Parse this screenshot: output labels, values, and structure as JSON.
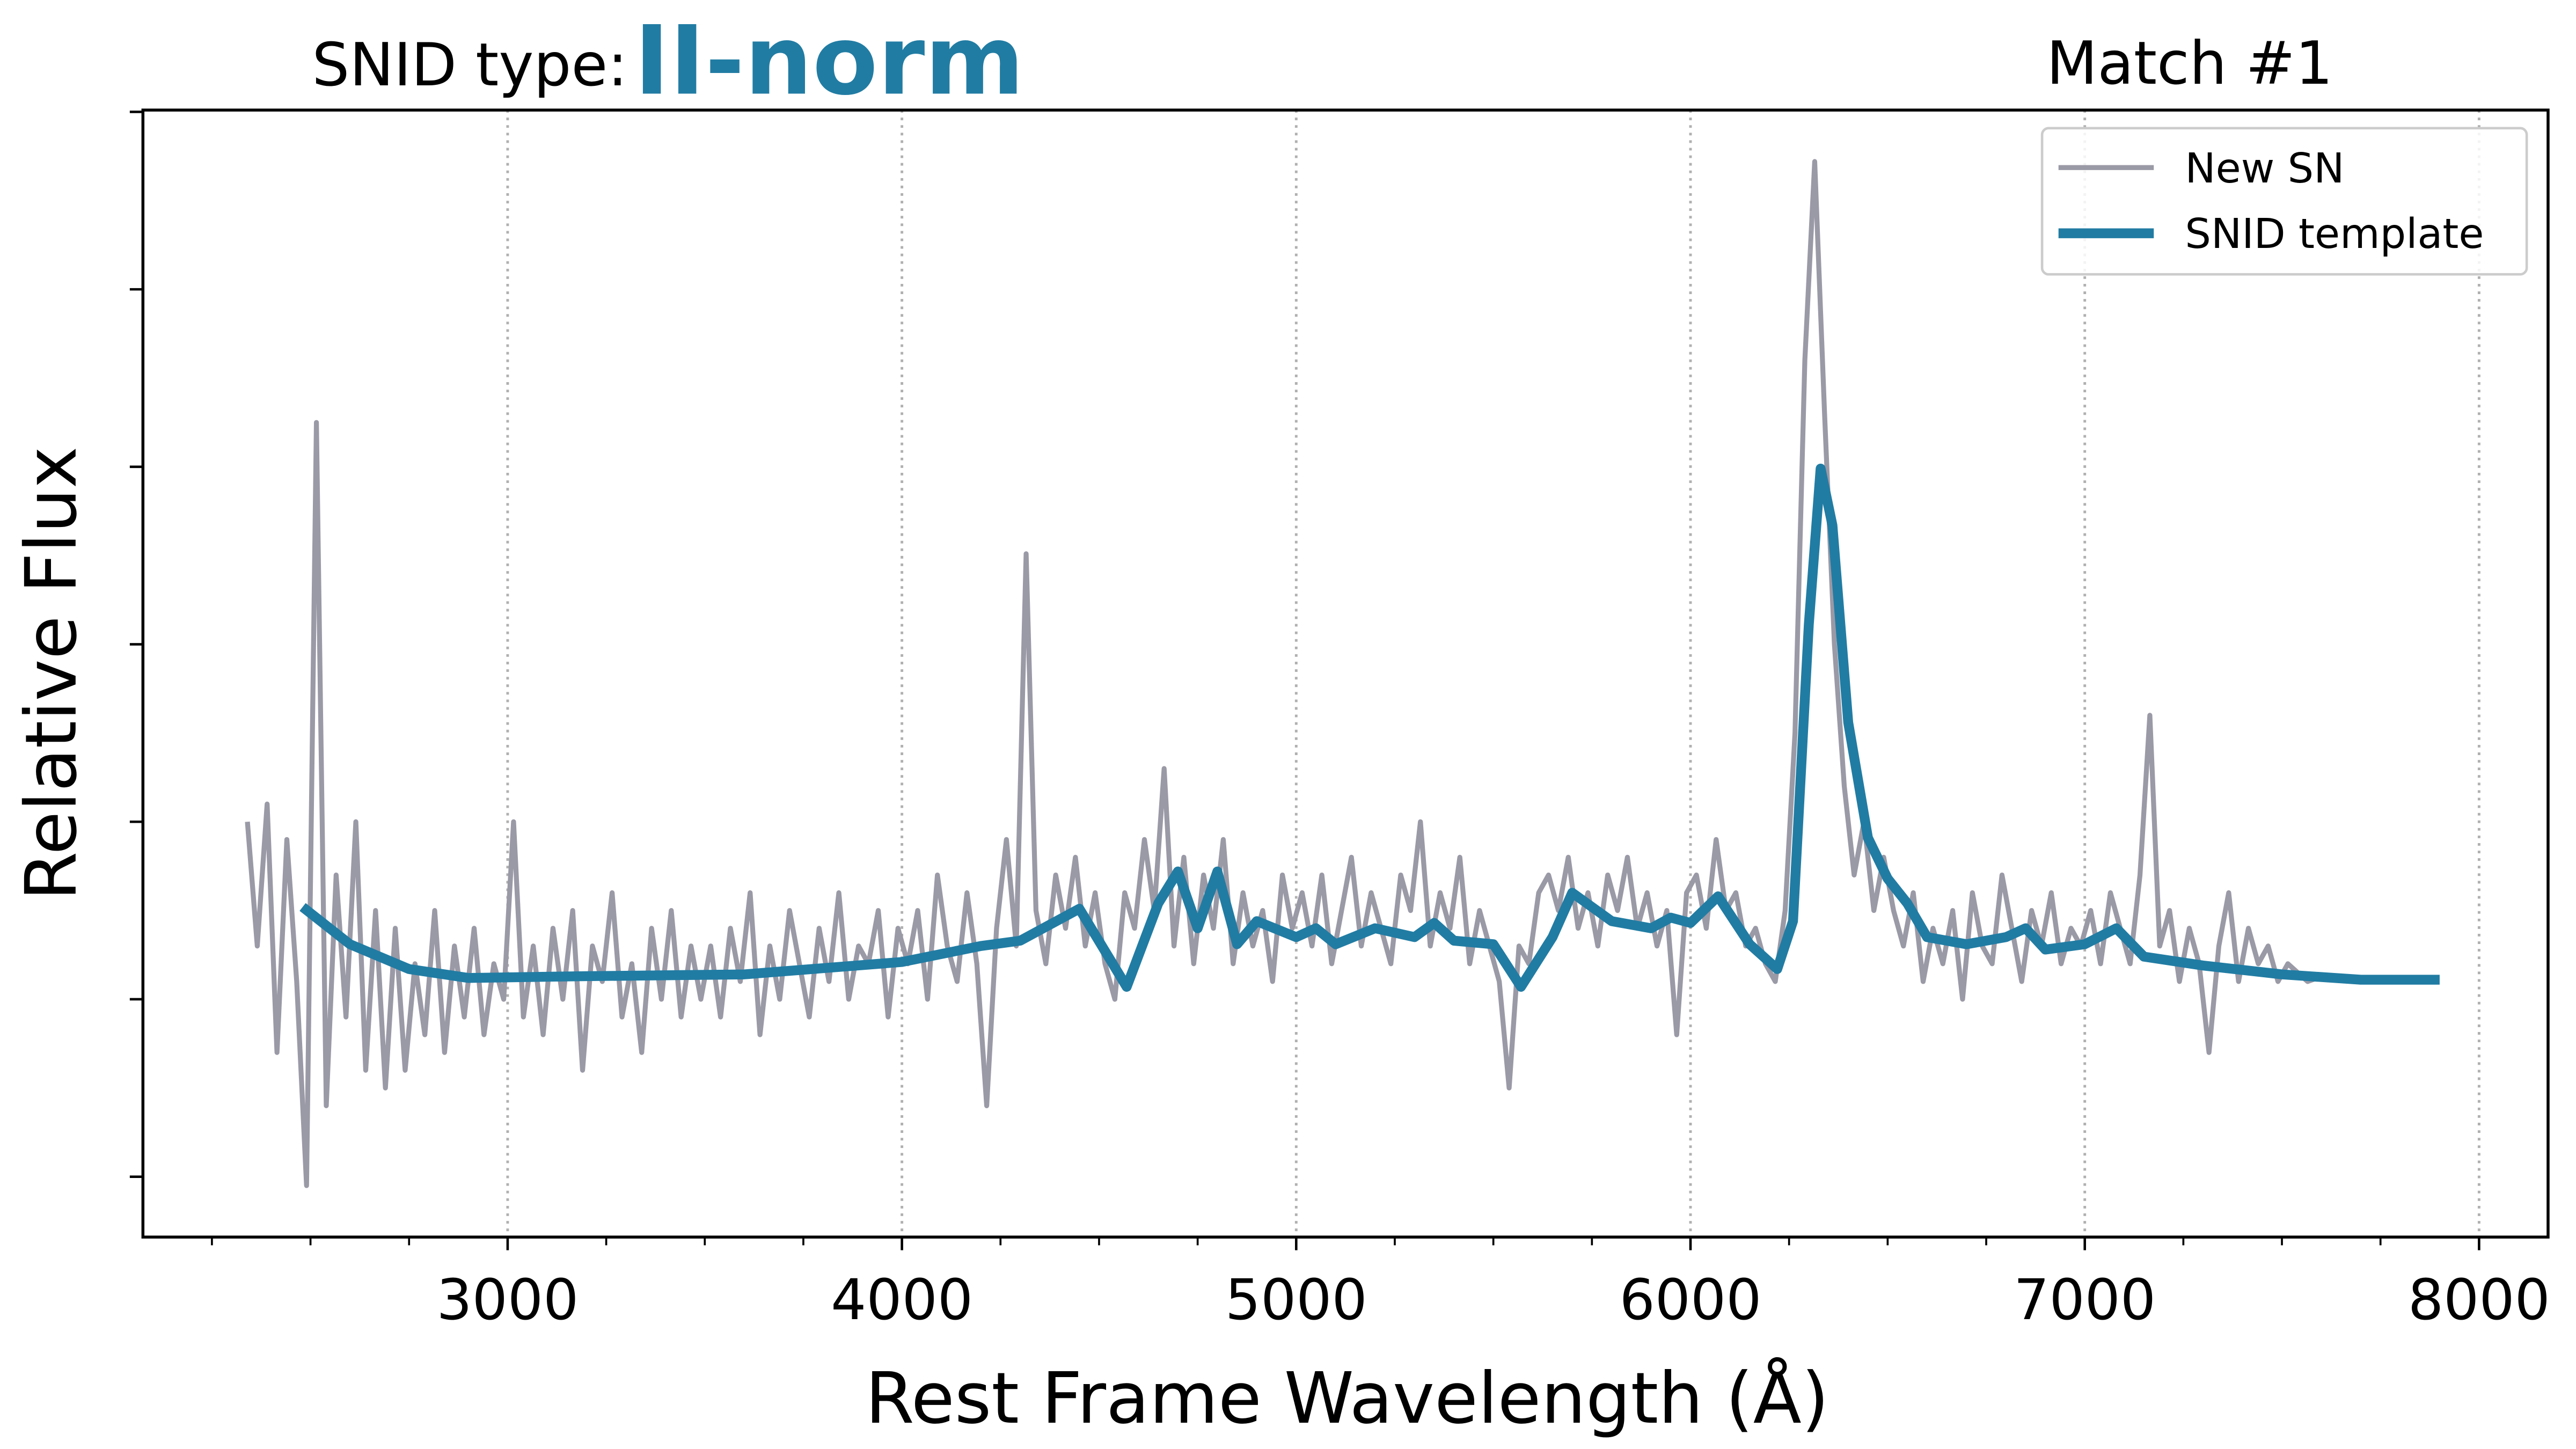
{
  "chart_data": {
    "type": "line",
    "type_label": "SNID type:",
    "type_value": "II-norm",
    "match_label": "Match #1",
    "xlabel": "Rest Frame Wavelength (Å)",
    "ylabel": "Relative Flux",
    "xlim": [
      2075,
      8175
    ],
    "ylim": [
      -0.34,
      6.01
    ],
    "xticks": [
      3000,
      4000,
      5000,
      6000,
      7000,
      8000
    ],
    "xminorticks": [
      2250,
      2500,
      2750,
      3250,
      3500,
      3750,
      4250,
      4500,
      4750,
      5250,
      5500,
      5750,
      6250,
      6500,
      6750,
      7250,
      7500,
      7750
    ],
    "yticks": [
      0,
      1,
      2,
      3,
      4,
      5,
      6
    ],
    "grid": true,
    "legend": "upper right",
    "series": [
      {
        "name": "New SN",
        "color": "#9a99a6",
        "x": [
          2340,
          2365,
          2390,
          2415,
          2440,
          2465,
          2490,
          2515,
          2540,
          2565,
          2590,
          2615,
          2640,
          2665,
          2690,
          2715,
          2740,
          2765,
          2790,
          2815,
          2840,
          2865,
          2890,
          2915,
          2940,
          2965,
          2990,
          3015,
          3040,
          3065,
          3090,
          3115,
          3140,
          3165,
          3190,
          3215,
          3240,
          3265,
          3290,
          3315,
          3340,
          3365,
          3390,
          3415,
          3440,
          3465,
          3490,
          3515,
          3540,
          3565,
          3590,
          3615,
          3640,
          3665,
          3690,
          3715,
          3740,
          3765,
          3790,
          3815,
          3840,
          3865,
          3890,
          3915,
          3940,
          3965,
          3990,
          4015,
          4040,
          4065,
          4090,
          4115,
          4140,
          4165,
          4190,
          4215,
          4240,
          4265,
          4290,
          4315,
          4340,
          4365,
          4390,
          4415,
          4440,
          4465,
          4490,
          4515,
          4540,
          4565,
          4590,
          4615,
          4640,
          4665,
          4690,
          4715,
          4740,
          4765,
          4790,
          4815,
          4840,
          4865,
          4890,
          4915,
          4940,
          4965,
          4990,
          5015,
          5040,
          5065,
          5090,
          5115,
          5140,
          5165,
          5190,
          5215,
          5240,
          5265,
          5290,
          5315,
          5340,
          5365,
          5390,
          5415,
          5440,
          5465,
          5490,
          5515,
          5540,
          5565,
          5590,
          5615,
          5640,
          5665,
          5690,
          5715,
          5740,
          5765,
          5790,
          5815,
          5840,
          5865,
          5890,
          5915,
          5940,
          5965,
          5990,
          6015,
          6040,
          6065,
          6090,
          6115,
          6140,
          6165,
          6190,
          6215,
          6240,
          6265,
          6290,
          6315,
          6340,
          6365,
          6390,
          6415,
          6440,
          6465,
          6490,
          6515,
          6540,
          6565,
          6590,
          6615,
          6640,
          6665,
          6690,
          6715,
          6740,
          6765,
          6790,
          6815,
          6840,
          6865,
          6890,
          6915,
          6940,
          6965,
          6990,
          7015,
          7040,
          7065,
          7090,
          7115,
          7140,
          7165,
          7190,
          7215,
          7240,
          7265,
          7290,
          7315,
          7340,
          7365,
          7390,
          7415,
          7440,
          7465,
          7490,
          7515,
          7540,
          7565,
          7590
        ],
        "values": [
          2.0,
          1.3,
          2.1,
          0.7,
          1.9,
          1.1,
          -0.05,
          4.25,
          0.4,
          1.7,
          0.9,
          2.0,
          0.6,
          1.5,
          0.5,
          1.4,
          0.6,
          1.2,
          0.8,
          1.5,
          0.7,
          1.3,
          0.9,
          1.4,
          0.8,
          1.2,
          1.0,
          2.0,
          0.9,
          1.3,
          0.8,
          1.4,
          1.0,
          1.5,
          0.6,
          1.3,
          1.1,
          1.6,
          0.9,
          1.2,
          0.7,
          1.4,
          1.0,
          1.5,
          0.9,
          1.3,
          1.0,
          1.3,
          0.9,
          1.4,
          1.1,
          1.6,
          0.8,
          1.3,
          1.0,
          1.5,
          1.2,
          0.9,
          1.4,
          1.1,
          1.6,
          1.0,
          1.3,
          1.2,
          1.5,
          0.9,
          1.4,
          1.2,
          1.5,
          1.0,
          1.7,
          1.3,
          1.1,
          1.6,
          1.2,
          0.4,
          1.4,
          1.9,
          1.3,
          3.51,
          1.5,
          1.2,
          1.7,
          1.4,
          1.8,
          1.3,
          1.6,
          1.2,
          1.0,
          1.6,
          1.4,
          1.9,
          1.5,
          2.3,
          1.3,
          1.8,
          1.2,
          1.7,
          1.4,
          1.9,
          1.2,
          1.6,
          1.3,
          1.5,
          1.1,
          1.7,
          1.4,
          1.6,
          1.3,
          1.7,
          1.2,
          1.5,
          1.8,
          1.3,
          1.6,
          1.4,
          1.2,
          1.7,
          1.5,
          2.0,
          1.3,
          1.6,
          1.4,
          1.8,
          1.2,
          1.5,
          1.3,
          1.1,
          0.5,
          1.3,
          1.2,
          1.6,
          1.7,
          1.5,
          1.8,
          1.4,
          1.6,
          1.3,
          1.7,
          1.5,
          1.8,
          1.4,
          1.6,
          1.3,
          1.5,
          0.8,
          1.6,
          1.7,
          1.4,
          1.9,
          1.5,
          1.6,
          1.3,
          1.4,
          1.2,
          1.1,
          1.5,
          2.5,
          4.6,
          5.72,
          4.3,
          3.0,
          2.2,
          1.7,
          2.0,
          1.5,
          1.8,
          1.5,
          1.3,
          1.6,
          1.1,
          1.4,
          1.2,
          1.5,
          1.0,
          1.6,
          1.3,
          1.2,
          1.7,
          1.4,
          1.1,
          1.5,
          1.3,
          1.6,
          1.2,
          1.4,
          1.3,
          1.5,
          1.2,
          1.6,
          1.4,
          1.2,
          1.7,
          2.6,
          1.3,
          1.5,
          1.1,
          1.4,
          1.2,
          0.7,
          1.3,
          1.6,
          1.1,
          1.4,
          1.2,
          1.3,
          1.1,
          1.2,
          1.15,
          1.1,
          1.12
        ]
      },
      {
        "name": "SNID template",
        "color": "#217ca3",
        "x": [
          2480,
          2600,
          2750,
          2900,
          3200,
          3600,
          4000,
          4200,
          4300,
          4450,
          4570,
          4650,
          4700,
          4750,
          4800,
          4850,
          4900,
          5000,
          5050,
          5100,
          5200,
          5300,
          5350,
          5400,
          5500,
          5570,
          5650,
          5700,
          5800,
          5900,
          5950,
          6000,
          6070,
          6150,
          6220,
          6260,
          6300,
          6330,
          6360,
          6400,
          6450,
          6500,
          6550,
          6600,
          6700,
          6800,
          6850,
          6900,
          7000,
          7080,
          7150,
          7300,
          7500,
          7700,
          7900
        ],
        "values": [
          1.52,
          1.31,
          1.17,
          1.12,
          1.13,
          1.14,
          1.21,
          1.3,
          1.33,
          1.51,
          1.07,
          1.54,
          1.72,
          1.4,
          1.72,
          1.31,
          1.44,
          1.35,
          1.4,
          1.31,
          1.4,
          1.35,
          1.43,
          1.33,
          1.31,
          1.07,
          1.35,
          1.6,
          1.44,
          1.4,
          1.46,
          1.43,
          1.58,
          1.31,
          1.17,
          1.44,
          3.11,
          3.99,
          3.67,
          2.56,
          1.91,
          1.68,
          1.54,
          1.35,
          1.31,
          1.35,
          1.4,
          1.28,
          1.31,
          1.4,
          1.24,
          1.19,
          1.14,
          1.11,
          1.11
        ]
      }
    ]
  }
}
